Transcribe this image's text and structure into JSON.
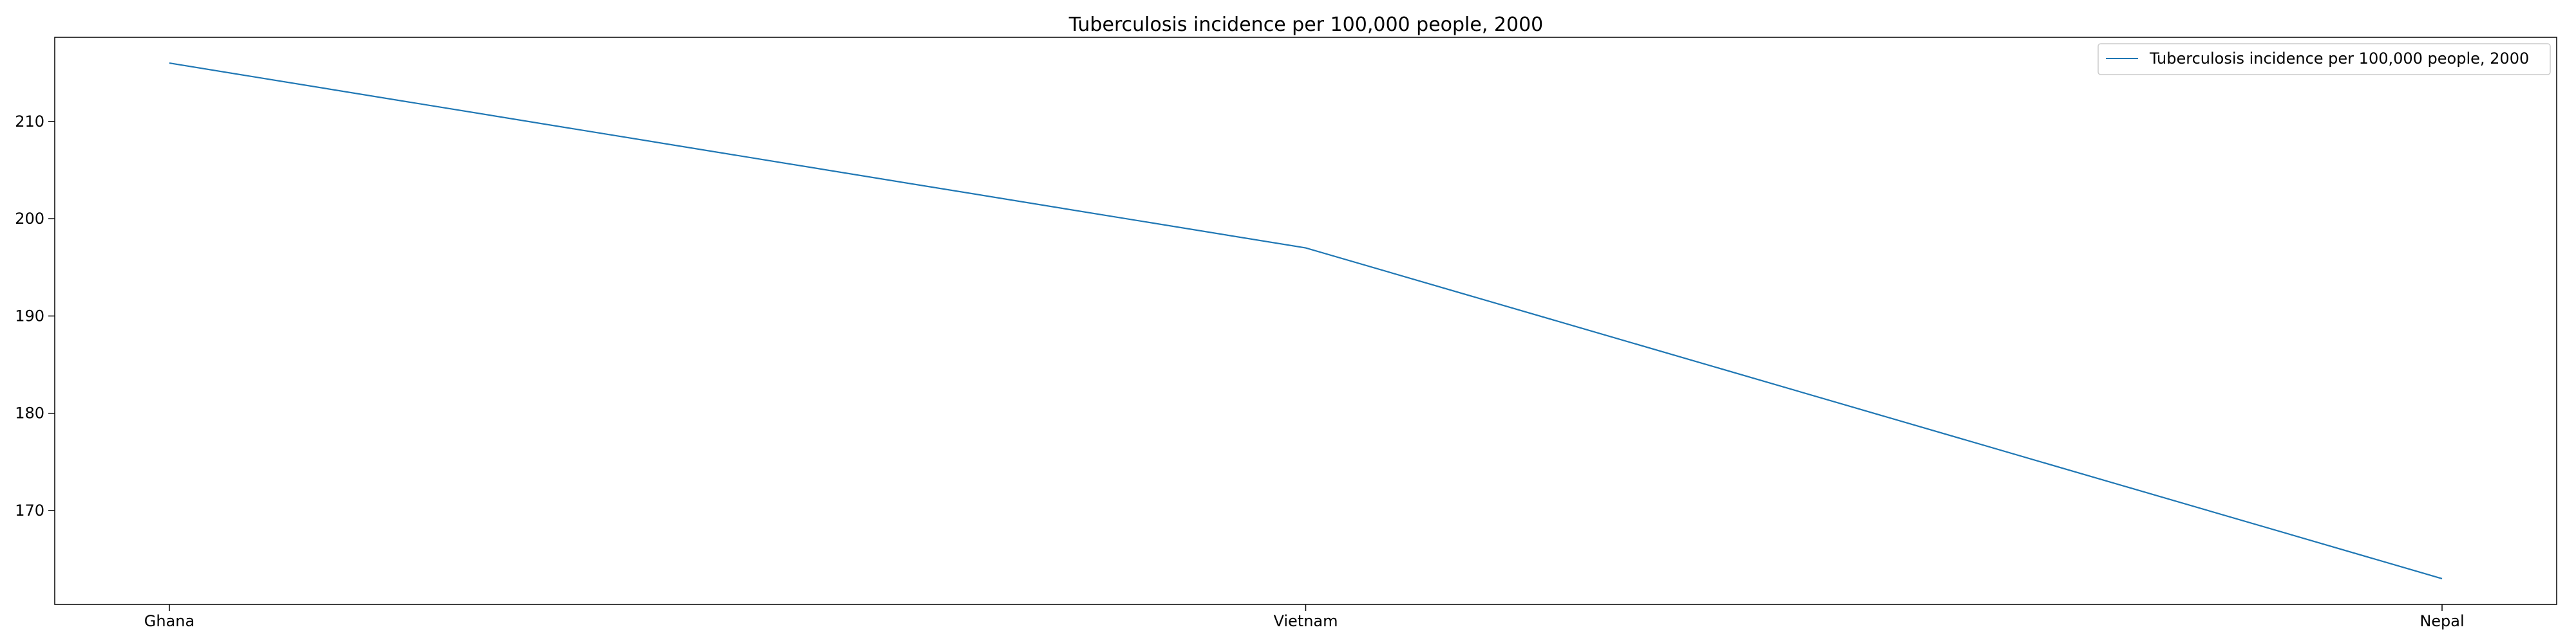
{
  "chart_data": {
    "type": "line",
    "title": "Tuberculosis incidence per 100,000 people, 2000",
    "xlabel": "",
    "ylabel": "",
    "categories": [
      "Ghana",
      "Vietnam",
      "Nepal"
    ],
    "series": [
      {
        "name": "Tuberculosis incidence per 100,000 people, 2000",
        "values": [
          216,
          197,
          163
        ],
        "color": "#1f77b4"
      }
    ],
    "ylim": [
      160.35,
      218.65
    ],
    "yticks": [
      170,
      180,
      190,
      200,
      210
    ],
    "grid": false,
    "legend_position": "top-right"
  }
}
